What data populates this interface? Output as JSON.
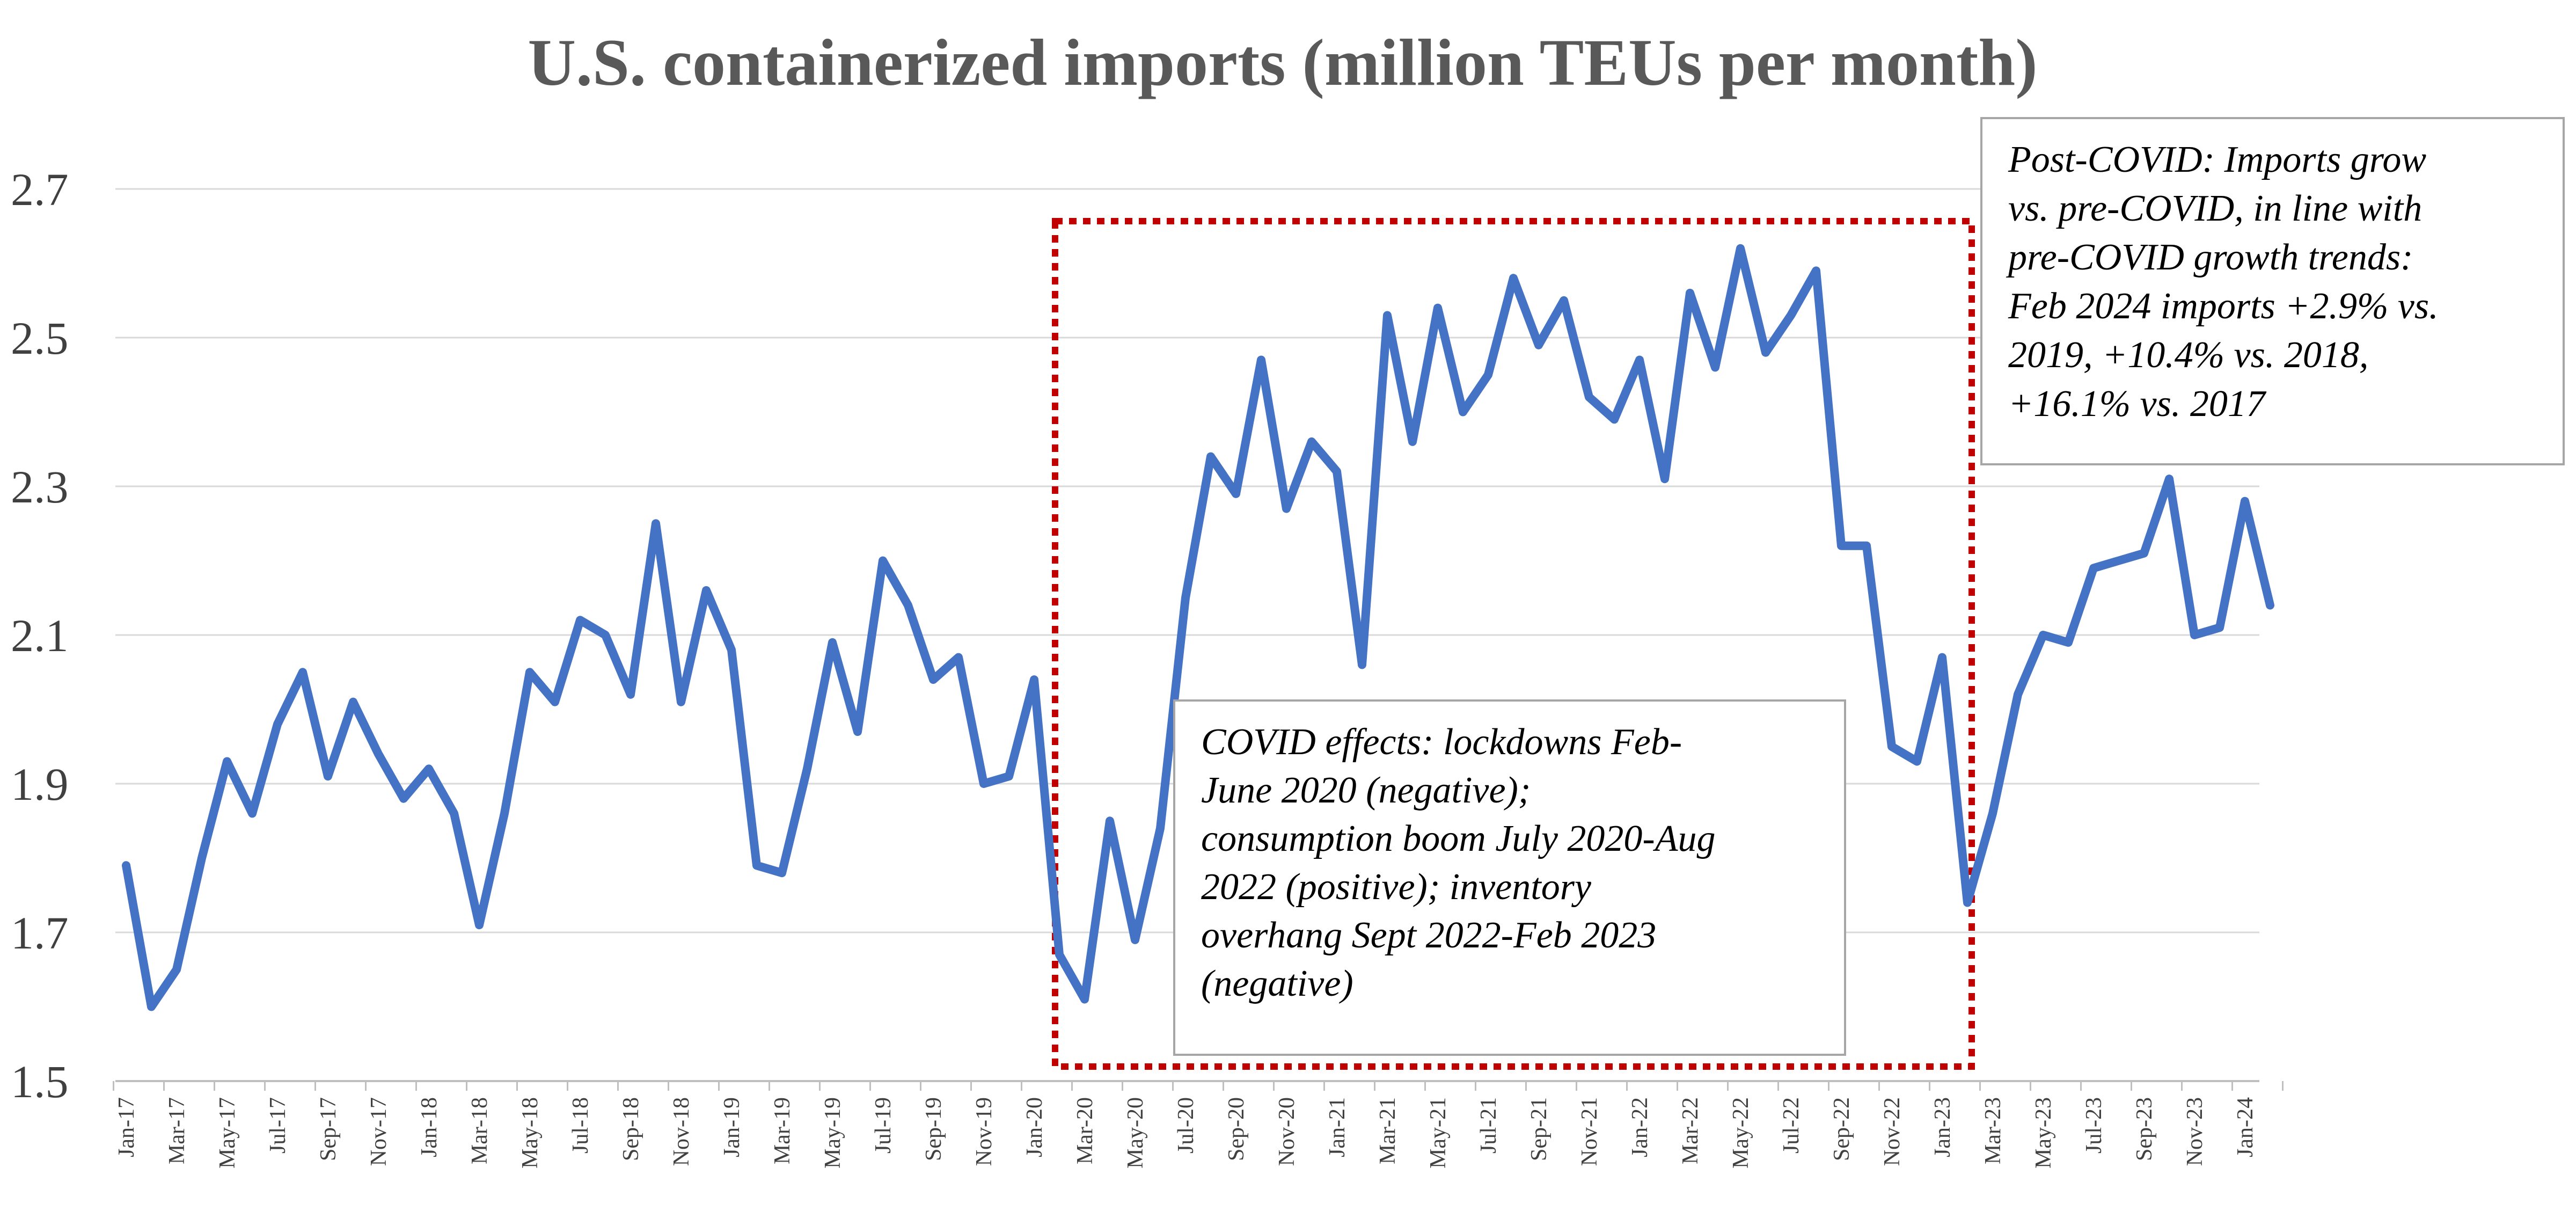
{
  "chart_data": {
    "type": "line",
    "title": "U.S. containerized imports (million TEUs per month)",
    "xlabel": "",
    "ylabel": "",
    "ylim": [
      1.5,
      2.7
    ],
    "yticks": [
      "1.5",
      "1.7",
      "1.9",
      "2.1",
      "2.3",
      "2.5",
      "2.7"
    ],
    "grid": true,
    "x": [
      "Jan-17",
      "Feb-17",
      "Mar-17",
      "Apr-17",
      "May-17",
      "Jun-17",
      "Jul-17",
      "Aug-17",
      "Sep-17",
      "Oct-17",
      "Nov-17",
      "Dec-17",
      "Jan-18",
      "Feb-18",
      "Mar-18",
      "Apr-18",
      "May-18",
      "Jun-18",
      "Jul-18",
      "Aug-18",
      "Sep-18",
      "Oct-18",
      "Nov-18",
      "Dec-18",
      "Jan-19",
      "Feb-19",
      "Mar-19",
      "Apr-19",
      "May-19",
      "Jun-19",
      "Jul-19",
      "Aug-19",
      "Sep-19",
      "Oct-19",
      "Nov-19",
      "Dec-19",
      "Jan-20",
      "Feb-20",
      "Mar-20",
      "Apr-20",
      "May-20",
      "Jun-20",
      "Jul-20",
      "Aug-20",
      "Sep-20",
      "Oct-20",
      "Nov-20",
      "Dec-20",
      "Jan-21",
      "Feb-21",
      "Mar-21",
      "Apr-21",
      "May-21",
      "Jun-21",
      "Jul-21",
      "Aug-21",
      "Sep-21",
      "Oct-21",
      "Nov-21",
      "Dec-21",
      "Jan-22",
      "Feb-22",
      "Mar-22",
      "Apr-22",
      "May-22",
      "Jun-22",
      "Jul-22",
      "Aug-22",
      "Sep-22",
      "Oct-22",
      "Nov-22",
      "Dec-22",
      "Jan-23",
      "Feb-23",
      "Mar-23",
      "Apr-23",
      "May-23",
      "Jun-23",
      "Jul-23",
      "Aug-23",
      "Sep-23",
      "Oct-23",
      "Nov-23",
      "Dec-23",
      "Jan-24",
      "Feb-24"
    ],
    "xtick_labels": [
      "Jan-17",
      "Mar-17",
      "May-17",
      "Jul-17",
      "Sep-17",
      "Nov-17",
      "Jan-18",
      "Mar-18",
      "May-18",
      "Jul-18",
      "Sep-18",
      "Nov-18",
      "Jan-19",
      "Mar-19",
      "May-19",
      "Jul-19",
      "Sep-19",
      "Nov-19",
      "Jan-20",
      "Mar-20",
      "May-20",
      "Jul-20",
      "Sep-20",
      "Nov-20",
      "Jan-21",
      "Mar-21",
      "May-21",
      "Jul-21",
      "Sep-21",
      "Nov-21",
      "Jan-22",
      "Mar-22",
      "May-22",
      "Jul-22",
      "Sep-22",
      "Nov-22",
      "Jan-23",
      "Mar-23",
      "May-23",
      "Jul-23",
      "Sep-23",
      "Nov-23",
      "Jan-24"
    ],
    "series": [
      {
        "color": "#4472c4",
        "values": [
          1.79,
          1.6,
          1.65,
          1.8,
          1.93,
          1.86,
          1.98,
          2.05,
          1.91,
          2.01,
          1.94,
          1.88,
          1.92,
          1.86,
          1.71,
          1.86,
          2.05,
          2.01,
          2.12,
          2.1,
          2.02,
          2.25,
          2.01,
          2.16,
          2.08,
          1.79,
          1.78,
          1.92,
          2.09,
          1.97,
          2.2,
          2.14,
          2.04,
          2.07,
          1.9,
          1.91,
          2.04,
          1.67,
          1.61,
          1.85,
          1.69,
          1.84,
          2.15,
          2.34,
          2.29,
          2.47,
          2.27,
          2.36,
          2.32,
          2.06,
          2.53,
          2.36,
          2.54,
          2.4,
          2.45,
          2.58,
          2.49,
          2.55,
          2.42,
          2.39,
          2.47,
          2.31,
          2.56,
          2.46,
          2.62,
          2.48,
          2.53,
          2.59,
          2.22,
          2.22,
          1.95,
          1.93,
          2.07,
          1.74,
          1.86,
          2.02,
          2.1,
          2.09,
          2.19,
          2.2,
          2.21,
          2.31,
          2.1,
          2.11,
          2.28,
          2.14
        ]
      }
    ],
    "annotations": {
      "covid": {
        "highlight_from": "Feb-20",
        "highlight_to": "Feb-23",
        "lines": [
          "COVID effects: lockdowns Feb-",
          "June 2020 (negative);",
          "consumption boom July 2020-Aug",
          "2022 (positive); inventory",
          "overhang Sept 2022-Feb 2023",
          "(negative)"
        ]
      },
      "post_covid": {
        "lines": [
          "Post-COVID: Imports grow",
          "vs. pre-COVID, in line with",
          "pre-COVID growth trends:",
          "Feb 2024 imports +2.9% vs.",
          "2019, +10.4% vs. 2018,",
          "+16.1% vs. 2017"
        ]
      }
    }
  }
}
